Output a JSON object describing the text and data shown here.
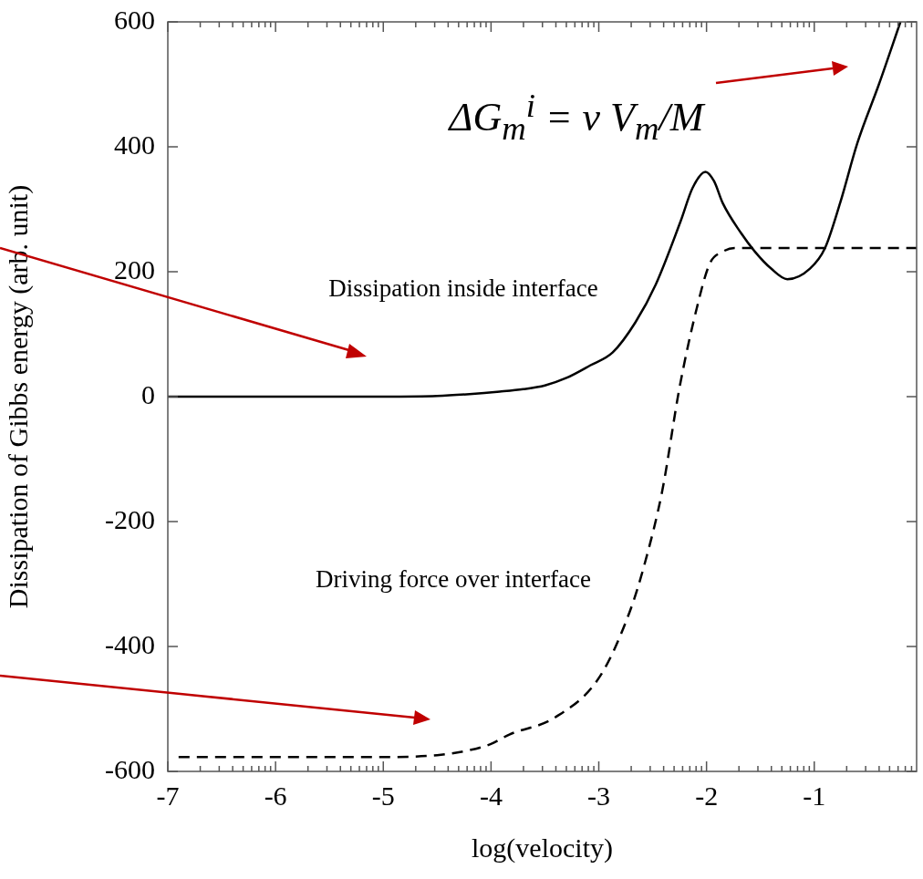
{
  "chart_data": {
    "type": "line",
    "xlabel": "log(velocity)",
    "ylabel": "Dissipation of Gibbs energy (arb. unit)",
    "xlim": [
      -7,
      -0.05
    ],
    "xticks": [
      -7,
      {
        "value": -6.699,
        "label": null
      },
      {
        "value": -6.523,
        "label": null
      },
      {
        "value": -6.398,
        "label": null
      },
      {
        "value": -6.301,
        "label": null
      },
      {
        "value": -6.222,
        "label": null
      },
      {
        "value": -6.155,
        "label": null
      },
      {
        "value": -6.097,
        "label": null
      },
      {
        "value": -6.046,
        "label": null
      },
      -6,
      {
        "value": -5.699,
        "label": null
      },
      {
        "value": -5.523,
        "label": null
      },
      {
        "value": -5.398,
        "label": null
      },
      {
        "value": -5.301,
        "label": null
      },
      {
        "value": -5.222,
        "label": null
      },
      {
        "value": -5.155,
        "label": null
      },
      {
        "value": -5.097,
        "label": null
      },
      {
        "value": -5.046,
        "label": null
      },
      -5,
      {
        "value": -4.699,
        "label": null
      },
      {
        "value": -4.523,
        "label": null
      },
      {
        "value": -4.398,
        "label": null
      },
      {
        "value": -4.301,
        "label": null
      },
      {
        "value": -4.222,
        "label": null
      },
      {
        "value": -4.155,
        "label": null
      },
      {
        "value": -4.097,
        "label": null
      },
      {
        "value": -4.046,
        "label": null
      },
      -4,
      {
        "value": -3.699,
        "label": null
      },
      {
        "value": -3.523,
        "label": null
      },
      {
        "value": -3.398,
        "label": null
      },
      {
        "value": -3.301,
        "label": null
      },
      {
        "value": -3.222,
        "label": null
      },
      {
        "value": -3.155,
        "label": null
      },
      {
        "value": -3.097,
        "label": null
      },
      {
        "value": -3.046,
        "label": null
      },
      -3,
      {
        "value": -2.699,
        "label": null
      },
      {
        "value": -2.523,
        "label": null
      },
      {
        "value": -2.398,
        "label": null
      },
      {
        "value": -2.301,
        "label": null
      },
      {
        "value": -2.222,
        "label": null
      },
      {
        "value": -2.155,
        "label": null
      },
      {
        "value": -2.097,
        "label": null
      },
      {
        "value": -2.046,
        "label": null
      },
      -2,
      {
        "value": -1.699,
        "label": null
      },
      {
        "value": -1.523,
        "label": null
      },
      {
        "value": -1.398,
        "label": null
      },
      {
        "value": -1.301,
        "label": null
      },
      {
        "value": -1.222,
        "label": null
      },
      {
        "value": -1.155,
        "label": null
      },
      {
        "value": -1.097,
        "label": null
      },
      {
        "value": -1.046,
        "label": null
      },
      -1,
      {
        "value": -0.699,
        "label": null
      },
      {
        "value": -0.523,
        "label": null
      },
      {
        "value": -0.398,
        "label": null
      },
      {
        "value": -0.301,
        "label": null
      },
      {
        "value": -0.222,
        "label": null
      },
      {
        "value": -0.155,
        "label": null
      },
      {
        "value": -0.097,
        "label": null
      }
    ],
    "ylim": [
      -600,
      600
    ],
    "yticks": [
      -600,
      -400,
      -200,
      0,
      200,
      400,
      600
    ],
    "grid": false,
    "legend": false,
    "marker": "none",
    "series": [
      {
        "color": "#000000",
        "line_style": "solid",
        "x": [
          -7,
          -6,
          -5,
          -4.5,
          -4.2,
          -3.92,
          -3.7,
          -3.5,
          -3.3,
          -3.08,
          -2.87,
          -2.66,
          -2.47,
          -2.24,
          -2.13,
          -2.01,
          -1.93,
          -1.85,
          -1.68,
          -1.55,
          -1.4,
          -1.25,
          -1.04,
          -0.9,
          -0.76,
          -0.6,
          -0.4,
          -0.2
        ],
        "values": [
          0,
          0,
          0,
          1,
          4,
          8,
          12,
          18,
          30,
          50,
          71,
          119,
          180,
          281,
          334,
          360,
          345,
          310,
          262,
          232,
          205,
          188,
          205,
          238,
          310,
          406,
          500,
          600
        ]
      },
      {
        "color": "#000000",
        "line_style": "dashed",
        "x": [
          -6.9,
          -5,
          -4.5,
          -4.2,
          -4,
          -3.83,
          -3.41,
          -2.99,
          -2.71,
          -2.57,
          -2.41,
          -2.25,
          -2.09,
          -1.97,
          -1.85,
          -1.74,
          -1.5,
          -0.05
        ],
        "values": [
          -577,
          -577,
          -574,
          -566,
          -556,
          -541,
          -514,
          -448,
          -343,
          -265,
          -150,
          15,
          142,
          213,
          232,
          238,
          238,
          238
        ]
      }
    ],
    "annotations": [
      "Dissipation inside interface",
      "Driving force over interface",
      "ΔG$_{m}$$^{i}$ = v V$_{m}$/M"
    ]
  }
}
